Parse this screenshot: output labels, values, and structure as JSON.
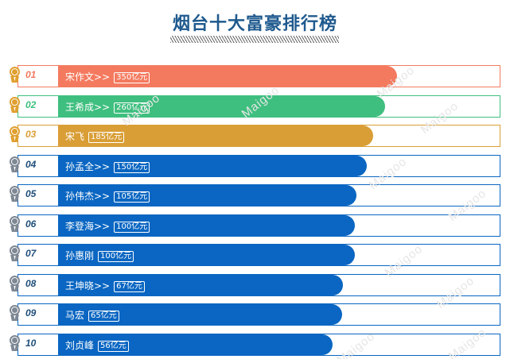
{
  "title": "烟台十大富豪排行榜",
  "watermark": "Maigoo",
  "colors": {
    "rank1": "#f47a5f",
    "rank2": "#3fbf7f",
    "rank3": "#d99e36",
    "rest": "#0a66c2",
    "medal_gold": "#e0a030",
    "medal_silver": "#7e8894"
  },
  "chart_data": {
    "type": "bar",
    "title": "烟台十大富豪排行榜",
    "unit": "亿元",
    "xlim": [
      0,
      560
    ],
    "items": [
      {
        "rank": "01",
        "name": "宋作文",
        "suffix": ">>",
        "value": 350,
        "value_label": "350亿元"
      },
      {
        "rank": "02",
        "name": "王希成",
        "suffix": ">>",
        "value": 260,
        "value_label": "260亿元"
      },
      {
        "rank": "03",
        "name": "宋飞",
        "suffix": "",
        "value": 185,
        "value_label": "185亿元"
      },
      {
        "rank": "04",
        "name": "孙孟全",
        "suffix": ">>",
        "value": 150,
        "value_label": "150亿元"
      },
      {
        "rank": "05",
        "name": "孙伟杰",
        "suffix": ">>",
        "value": 105,
        "value_label": "105亿元"
      },
      {
        "rank": "06",
        "name": "李登海",
        "suffix": ">>",
        "value": 100,
        "value_label": "100亿元"
      },
      {
        "rank": "07",
        "name": "孙惠刚",
        "suffix": "",
        "value": 100,
        "value_label": "100亿元"
      },
      {
        "rank": "08",
        "name": "王坤晓",
        "suffix": ">>",
        "value": 67,
        "value_label": "67亿元"
      },
      {
        "rank": "09",
        "name": "马宏",
        "suffix": "",
        "value": 65,
        "value_label": "65亿元"
      },
      {
        "rank": "10",
        "name": "刘贞峰",
        "suffix": "",
        "value": 56,
        "value_label": "56亿元"
      }
    ]
  }
}
